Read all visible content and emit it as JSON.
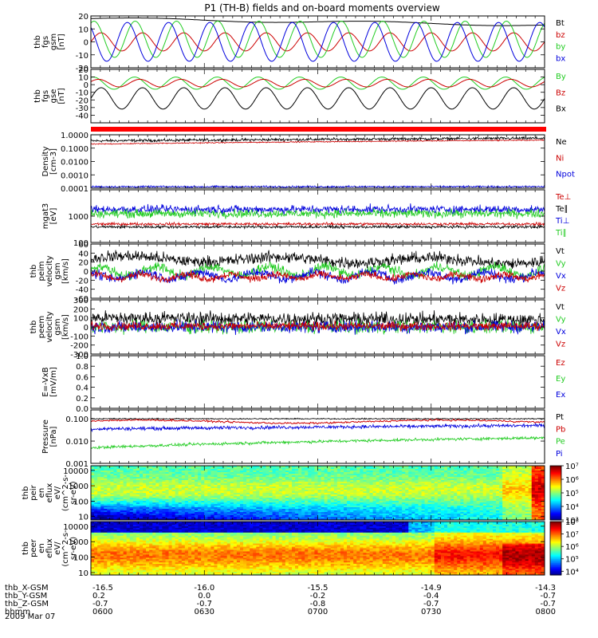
{
  "title": "P1 (TH-B) fields and on-board moments overview",
  "date": "2009 Mar 07",
  "chart_data": [
    {
      "type": "line",
      "ylabel": [
        "thb",
        "fgs",
        "gsm",
        "[nT]"
      ],
      "ylim": [
        -20,
        20
      ],
      "yticks": [
        -20,
        -10,
        0,
        10,
        20
      ],
      "series": [
        {
          "name": "Bt",
          "color": "#000000",
          "mode": "sine",
          "base": 18,
          "amp": 1,
          "periods": 2,
          "phase": 0,
          "noise": 0,
          "trend": -5
        },
        {
          "name": "bz",
          "color": "#cc0000",
          "mode": "sine",
          "base": 0,
          "amp": 7,
          "periods": 11,
          "phase": 0,
          "noise": 0,
          "trend": 0
        },
        {
          "name": "by",
          "color": "#22cc22",
          "mode": "sine",
          "base": 2,
          "amp": 14,
          "periods": 11,
          "phase": 1.1,
          "noise": 0,
          "trend": 0
        },
        {
          "name": "bx",
          "color": "#0000dd",
          "mode": "sine",
          "base": 0,
          "amp": 15,
          "periods": 11,
          "phase": 2.3,
          "noise": 0,
          "trend": 0
        }
      ]
    },
    {
      "type": "line",
      "ylabel": [
        "thb",
        "fgs",
        "gse",
        "[nT]"
      ],
      "ylim": [
        -50,
        20
      ],
      "yticks": [
        -40,
        -30,
        -20,
        -10,
        0,
        10,
        20
      ],
      "series": [
        {
          "name": "By",
          "color": "#22cc22",
          "mode": "sine",
          "base": 2,
          "amp": 8,
          "periods": 11,
          "phase": 1.2,
          "noise": 0,
          "trend": 0
        },
        {
          "name": "Bz",
          "color": "#cc0000",
          "mode": "sine",
          "base": 2,
          "amp": 5,
          "periods": 11,
          "phase": 0.4,
          "noise": 0,
          "trend": 0
        },
        {
          "name": "Bx",
          "color": "#000000",
          "mode": "sine",
          "base": -18,
          "amp": 14,
          "periods": 11,
          "phase": 0,
          "noise": 0,
          "trend": 0
        }
      ]
    },
    {
      "type": "line",
      "ylog": true,
      "ylabel": [
        "Density",
        "[cm-3]"
      ],
      "ylim": [
        0.0001,
        1
      ],
      "yticks": [
        1,
        0.1,
        0.01,
        0.001,
        0.0001
      ],
      "yticklabels": [
        "1.0000",
        "0.1000",
        "0.0100",
        "0.0010",
        "0.0001"
      ],
      "series": [
        {
          "name": "Ne",
          "color": "#000000",
          "mode": "noise",
          "base": 0.35,
          "amp": 0,
          "periods": 0,
          "phase": 0,
          "noise": 0.08,
          "trend": 0.2
        },
        {
          "name": "Ni",
          "color": "#cc0000",
          "mode": "noise",
          "base": 0.2,
          "amp": 0,
          "periods": 0,
          "phase": 0,
          "noise": 0.03,
          "trend": 0.2
        },
        {
          "name": "Npot",
          "color": "#0000dd",
          "mode": "noise",
          "base": 0.00013,
          "amp": 0,
          "periods": 0,
          "phase": 0,
          "noise": 0.05,
          "trend": 0
        }
      ]
    },
    {
      "type": "line",
      "ylog": true,
      "ylabel": [
        "mgat3",
        "[eV]"
      ],
      "ylim": [
        100,
        10000
      ],
      "yticks": [
        100,
        1000
      ],
      "yticklabels": [
        "100",
        "1000"
      ],
      "series": [
        {
          "name": "Te⊥",
          "color": "#cc0000",
          "mode": "noise",
          "base": 500,
          "amp": 0,
          "periods": 0,
          "phase": 0,
          "noise": 0.04,
          "trend": 0
        },
        {
          "name": "Te∥",
          "color": "#000000",
          "mode": "noise",
          "base": 390,
          "amp": 0,
          "periods": 0,
          "phase": 0,
          "noise": 0.04,
          "trend": 0
        },
        {
          "name": "Ti⊥",
          "color": "#0000dd",
          "mode": "noise",
          "base": 1800,
          "amp": 0,
          "periods": 0,
          "phase": 0,
          "noise": 0.12,
          "trend": 0
        },
        {
          "name": "Ti∥",
          "color": "#22cc22",
          "mode": "noise",
          "base": 1250,
          "amp": 0,
          "periods": 0,
          "phase": 0,
          "noise": 0.12,
          "trend": 0
        }
      ]
    },
    {
      "type": "line",
      "ylabel": [
        "thb",
        "peim",
        "velocity",
        "gsm",
        "[km/s]"
      ],
      "ylim": [
        -60,
        60
      ],
      "yticks": [
        -60,
        -40,
        -20,
        0,
        20,
        40,
        60
      ],
      "series": [
        {
          "name": "Vt",
          "color": "#000000",
          "mode": "noise",
          "base": 28,
          "amp": 6,
          "periods": 3,
          "phase": 0,
          "noise": 10,
          "trend": -6
        },
        {
          "name": "Vy",
          "color": "#22cc22",
          "mode": "noise",
          "base": 0,
          "amp": 10,
          "periods": 8,
          "phase": 0.7,
          "noise": 8,
          "trend": 0
        },
        {
          "name": "Vx",
          "color": "#0000dd",
          "mode": "noise",
          "base": -10,
          "amp": 8,
          "periods": 8,
          "phase": 2,
          "noise": 8,
          "trend": 0
        },
        {
          "name": "Vz",
          "color": "#cc0000",
          "mode": "noise",
          "base": -12,
          "amp": 5,
          "periods": 10,
          "phase": 1,
          "noise": 6,
          "trend": 0
        }
      ]
    },
    {
      "type": "line",
      "ylabel": [
        "thb",
        "peem",
        "velocity",
        "gsm",
        "[km/s]"
      ],
      "ylim": [
        -300,
        300
      ],
      "yticks": [
        -300,
        -200,
        -100,
        0,
        100,
        200,
        300
      ],
      "series": [
        {
          "name": "Vt",
          "color": "#000000",
          "mode": "noise",
          "base": 100,
          "amp": 0,
          "periods": 0,
          "phase": 0,
          "noise": 55,
          "trend": -20
        },
        {
          "name": "Vy",
          "color": "#22cc22",
          "mode": "noise",
          "base": 0,
          "amp": 0,
          "periods": 0,
          "phase": 0,
          "noise": 55,
          "trend": 0
        },
        {
          "name": "Vx",
          "color": "#0000dd",
          "mode": "noise",
          "base": 0,
          "amp": 0,
          "periods": 0,
          "phase": 0,
          "noise": 50,
          "trend": 0
        },
        {
          "name": "Vz",
          "color": "#cc0000",
          "mode": "noise",
          "base": 10,
          "amp": 0,
          "periods": 0,
          "phase": 0,
          "noise": 35,
          "trend": 0
        }
      ]
    },
    {
      "type": "line",
      "ylabel": [
        "E=-VxB",
        "[mV/m]"
      ],
      "ylim": [
        0,
        1
      ],
      "yticks": [
        0,
        0.2,
        0.4,
        0.6,
        0.8,
        1.0
      ],
      "yticklabels": [
        "0.0",
        "0.2",
        "0.4",
        "0.6",
        "0.8",
        "1.0"
      ],
      "series": [
        {
          "name": "Ez",
          "color": "#cc0000",
          "mode": "none",
          "base": 0,
          "amp": 0,
          "periods": 0,
          "phase": 0,
          "noise": 0,
          "trend": 0
        },
        {
          "name": "Ey",
          "color": "#22cc22",
          "mode": "none",
          "base": 0,
          "amp": 0,
          "periods": 0,
          "phase": 0,
          "noise": 0,
          "trend": 0
        },
        {
          "name": "Ex",
          "color": "#0000dd",
          "mode": "none",
          "base": 0,
          "amp": 0,
          "periods": 0,
          "phase": 0,
          "noise": 0,
          "trend": 0
        }
      ]
    },
    {
      "type": "line",
      "ylog": true,
      "ylabel": [
        "Pressure",
        "[nPa]"
      ],
      "ylim": [
        0.001,
        0.25
      ],
      "yticks": [
        0.1,
        0.01,
        0.001
      ],
      "yticklabels": [
        "0.100",
        "0.010",
        "0.001"
      ],
      "series": [
        {
          "name": "Pt",
          "color": "#000000",
          "mode": "noise",
          "base": 0.1,
          "amp": 0,
          "periods": 0,
          "phase": 0,
          "noise": 0.02,
          "trend": 0
        },
        {
          "name": "Pb",
          "color": "#cc0000",
          "mode": "sine",
          "base": 0.075,
          "amp": 0.012,
          "periods": 1.5,
          "phase": 0.5,
          "noise": 0.03,
          "trend": 0
        },
        {
          "name": "Pe",
          "color": "#22cc22",
          "mode": "noise",
          "base": 0.005,
          "amp": 0,
          "periods": 0,
          "phase": 0,
          "noise": 0.05,
          "trend": 0.009
        },
        {
          "name": "Pi",
          "color": "#0000dd",
          "mode": "noise",
          "base": 0.035,
          "amp": 0,
          "periods": 0,
          "phase": 0,
          "noise": 0.06,
          "trend": 0.015
        }
      ]
    },
    {
      "type": "heatmap",
      "ylog": true,
      "ylabel": [
        "thb",
        "peir",
        "en",
        "eflux",
        "eV/",
        "(cm^2-s-",
        "sr-eV)"
      ],
      "ylim": [
        6,
        20000
      ],
      "yticks": [
        10,
        100,
        1000,
        10000
      ],
      "yticklabels": [
        "10",
        "100",
        "1000",
        "10000"
      ],
      "colorbar": {
        "range": [
          1000,
          10000000
        ],
        "ticks": [
          1000,
          10000,
          100000,
          1000000,
          10000000
        ],
        "ticklabels": [
          "10³",
          "10⁴",
          "10⁵",
          "10⁶",
          "10⁷"
        ]
      }
    },
    {
      "type": "heatmap",
      "ylog": true,
      "ylabel": [
        "thb",
        "peer",
        "en",
        "eflux",
        "eV/",
        "(cm^2-s-",
        "sr-eV)"
      ],
      "ylim": [
        7,
        20000
      ],
      "yticks": [
        10,
        100,
        1000,
        10000
      ],
      "yticklabels": [
        "10",
        "100",
        "1000",
        "10000"
      ],
      "colorbar": {
        "range": [
          5000,
          100000000
        ],
        "ticks": [
          10000,
          100000,
          1000000,
          10000000,
          100000000
        ],
        "ticklabels": [
          "10⁴",
          "10⁵",
          "10⁶",
          "10⁷",
          "10⁸"
        ]
      }
    }
  ],
  "x_axis": {
    "rows": [
      {
        "label": "thb_X-GSM",
        "values": [
          "-16.5",
          "-16.0",
          "-15.5",
          "-14.9",
          "-14.3"
        ]
      },
      {
        "label": "thb_Y-GSM",
        "values": [
          "0.2",
          "0.0",
          "-0.2",
          "-0.4",
          "-0.7"
        ]
      },
      {
        "label": "thb_Z-GSM",
        "values": [
          "-0.7",
          "-0.7",
          "-0.8",
          "-0.7",
          "-0.7"
        ]
      },
      {
        "label": "hhmm",
        "values": [
          "0600",
          "0630",
          "0700",
          "0730",
          "0800"
        ]
      }
    ]
  },
  "colors": {
    "red_bar": "#ff0000"
  }
}
